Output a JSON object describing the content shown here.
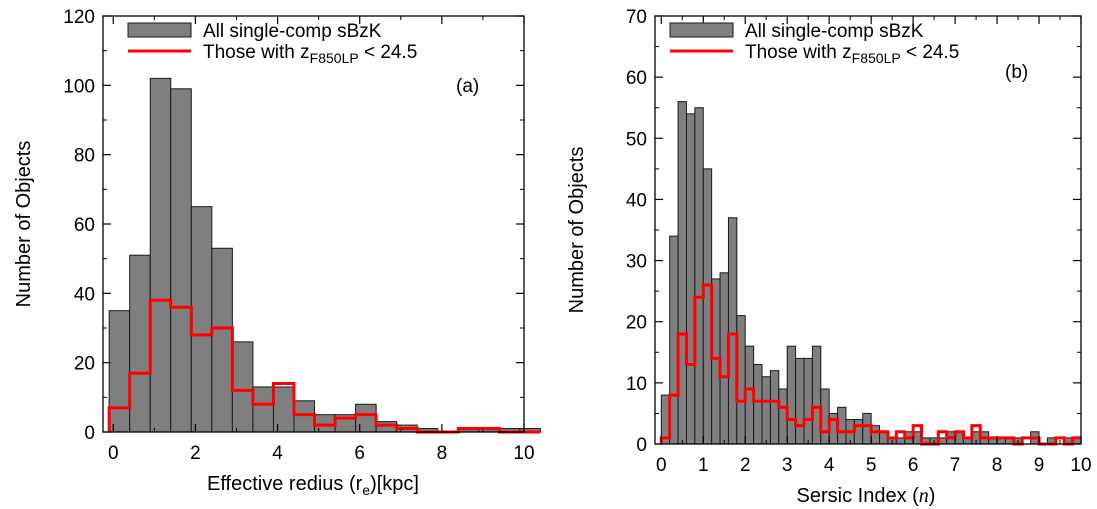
{
  "figure": {
    "colors": {
      "bar_fill": "#7f7f7f",
      "bar_stroke": "#1a1a1a",
      "step_line": "#ff0000",
      "axes": "#000000",
      "background": "#ffffff"
    }
  },
  "chart_data": [
    {
      "type": "bar",
      "panel_label": "(a)",
      "xlabel_main": "Effective redius (r",
      "xlabel_sub": "e",
      "xlabel_tail": ")[kpc]",
      "ylabel": "Number of Objects",
      "xlim": [
        -0.25,
        10
      ],
      "ylim": [
        0,
        120
      ],
      "xticks": [
        0,
        2,
        4,
        6,
        8,
        10
      ],
      "yticks": [
        0,
        20,
        40,
        60,
        80,
        100,
        120
      ],
      "xtick_labels": [
        "0",
        "2",
        "4",
        "6",
        "8",
        "10"
      ],
      "ytick_labels": [
        "0",
        "20",
        "40",
        "60",
        "80",
        "100",
        "120"
      ],
      "bin_width": 0.5,
      "bin_edges": [
        -0.1,
        0.4,
        0.9,
        1.4,
        1.9,
        2.4,
        2.9,
        3.4,
        3.9,
        4.4,
        4.9,
        5.4,
        5.9,
        6.4,
        6.9,
        7.4,
        7.9,
        8.4,
        8.9,
        9.4,
        9.9,
        10.4
      ],
      "legend": {
        "position": "top-left",
        "bar_label": "All single-comp sBzK",
        "line_label_main": "Those with z",
        "line_label_sub": "F850LP",
        "line_label_tail": " < 24.5"
      },
      "series": [
        {
          "name": "All single-comp sBzK",
          "style": "bar",
          "values": [
            35,
            51,
            102,
            99,
            65,
            53,
            26,
            13,
            13,
            9,
            5,
            5,
            8,
            3,
            2,
            1,
            0,
            1,
            1,
            1,
            1
          ]
        },
        {
          "name": "Those with zF850LP < 24.5",
          "style": "step",
          "values": [
            7,
            17,
            38,
            36,
            28,
            30,
            12,
            8,
            14,
            5,
            2,
            4,
            5,
            2,
            1,
            0,
            0,
            1,
            1,
            0,
            0
          ]
        }
      ]
    },
    {
      "type": "bar",
      "panel_label": "(b)",
      "xlabel_main": "Sersic Index (",
      "xlabel_italic": "n",
      "xlabel_tail": ")",
      "ylabel": "Number of Objects",
      "xlim": [
        -0.15,
        10
      ],
      "ylim": [
        0,
        70
      ],
      "xticks": [
        0,
        1,
        2,
        3,
        4,
        5,
        6,
        7,
        8,
        9,
        10
      ],
      "yticks": [
        0,
        10,
        20,
        30,
        40,
        50,
        60,
        70
      ],
      "xtick_labels": [
        "0",
        "1",
        "2",
        "3",
        "4",
        "5",
        "6",
        "7",
        "8",
        "9",
        "10"
      ],
      "ytick_labels": [
        "0",
        "10",
        "20",
        "30",
        "40",
        "50",
        "60",
        "70"
      ],
      "bin_width": 0.2,
      "bin_edges": [
        0.0,
        0.2,
        0.4,
        0.6,
        0.8,
        1.0,
        1.2,
        1.4,
        1.6,
        1.8,
        2.0,
        2.2,
        2.4,
        2.6,
        2.8,
        3.0,
        3.2,
        3.4,
        3.6,
        3.8,
        4.0,
        4.2,
        4.4,
        4.6,
        4.8,
        5.0,
        5.2,
        5.4,
        5.6,
        5.8,
        6.0,
        6.2,
        6.4,
        6.6,
        6.8,
        7.0,
        7.2,
        7.4,
        7.6,
        7.8,
        8.0,
        8.2,
        8.4,
        8.6,
        8.8,
        9.0,
        9.2,
        9.4,
        9.6,
        9.8,
        10.0
      ],
      "legend": {
        "position": "top-left",
        "bar_label": "All single-comp sBzK",
        "line_label_main": "Those with z",
        "line_label_sub": "F850LP",
        "line_label_tail": " < 24.5"
      },
      "series": [
        {
          "name": "All single-comp sBzK",
          "style": "bar",
          "values": [
            8,
            34,
            56,
            54,
            55,
            45,
            27,
            28,
            37,
            21,
            16,
            13,
            11,
            12,
            9,
            16,
            14,
            14,
            16,
            9,
            5,
            6,
            4,
            4,
            5,
            3,
            2,
            1,
            1,
            2,
            2,
            1,
            1,
            1,
            2,
            2,
            1,
            2,
            2,
            1,
            1,
            1,
            1,
            0,
            2,
            0,
            1,
            0,
            1,
            1
          ]
        },
        {
          "name": "Those with zF850LP < 24.5",
          "style": "step",
          "values": [
            1,
            8,
            18,
            13,
            24,
            26,
            14,
            11,
            18,
            7,
            9,
            7,
            7,
            7,
            6,
            4,
            3,
            4,
            6,
            2,
            4,
            2,
            2,
            3,
            3,
            2,
            2,
            1,
            2,
            1,
            3,
            0,
            0,
            2,
            1,
            2,
            1,
            3,
            1,
            1,
            1,
            1,
            0,
            1,
            1,
            0,
            0,
            1,
            0,
            1
          ]
        }
      ]
    }
  ]
}
